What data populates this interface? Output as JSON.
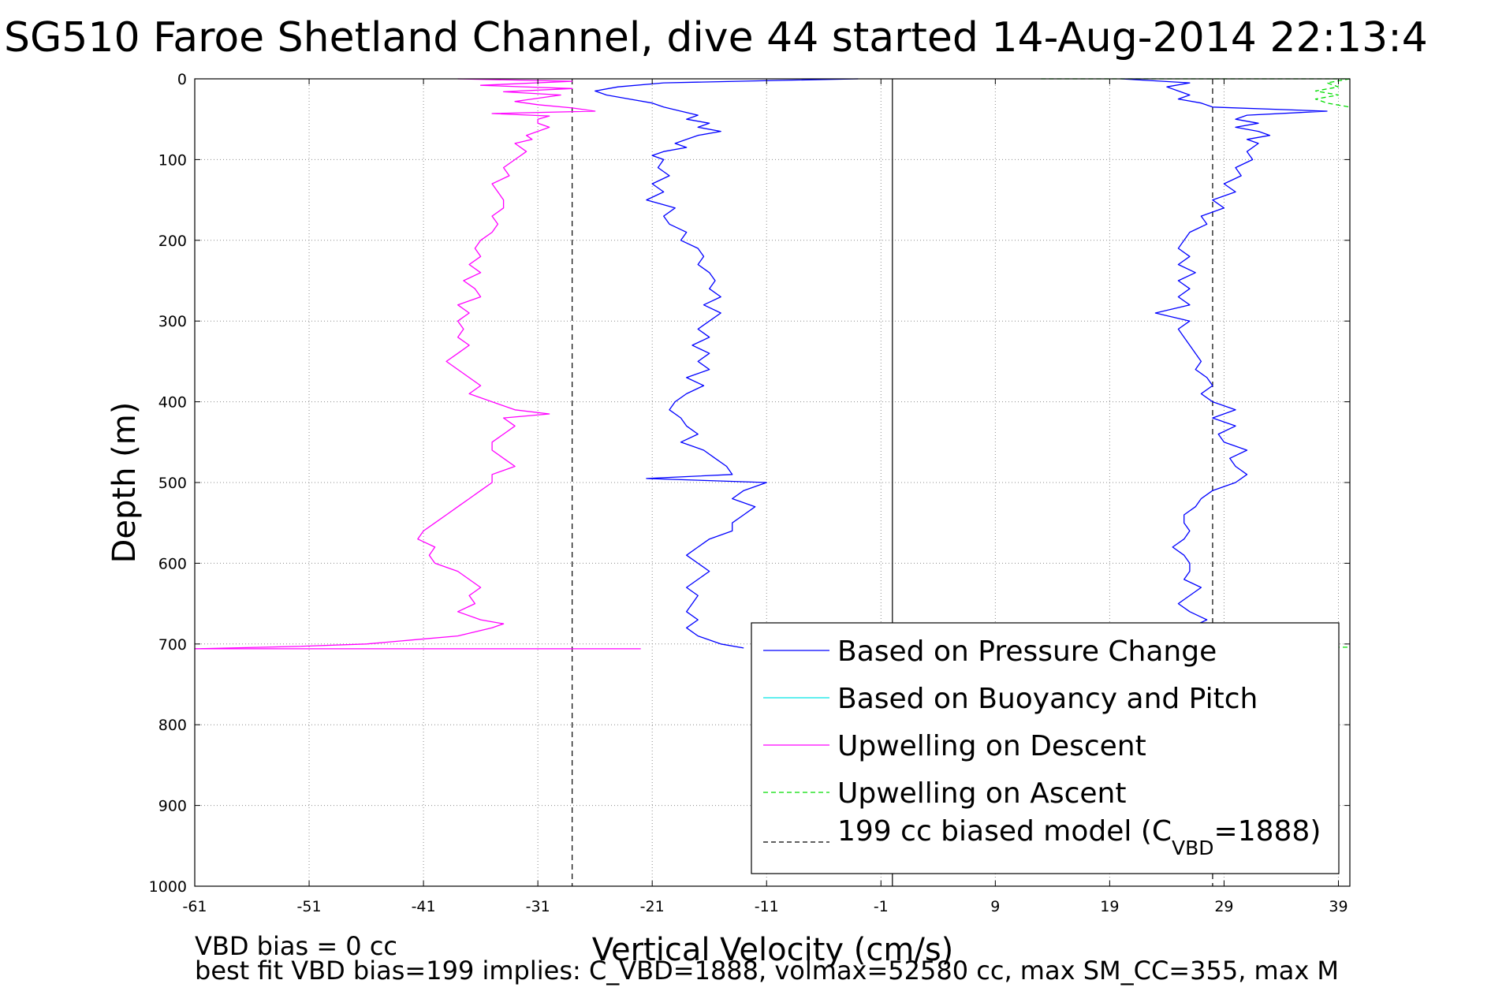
{
  "chart_data": {
    "type": "line",
    "title": "SG510 Faroe Shetland Channel, dive 44 started 14-Aug-2014 22:13:4",
    "xlabel": "Vertical Velocity (cm/s)",
    "ylabel": "Depth (m)",
    "xlim": [
      -61,
      40
    ],
    "ylim": [
      0,
      1000
    ],
    "y_reversed": true,
    "x_ticks": [
      -61,
      -51,
      -41,
      -31,
      -21,
      -11,
      -1,
      9,
      19,
      29,
      39
    ],
    "y_ticks": [
      0,
      100,
      200,
      300,
      400,
      500,
      600,
      700,
      800,
      900,
      1000
    ],
    "grid": true,
    "legend_placement": "bottom-right",
    "legend": {
      "entries": [
        {
          "text": "Based on Pressure Change",
          "color": "#0000ff",
          "style": "solid"
        },
        {
          "text": "Based on Buoyancy and Pitch",
          "color": "#00e5e5",
          "style": "solid"
        },
        {
          "text": "Upwelling on Descent",
          "color": "#ff00ff",
          "style": "solid"
        },
        {
          "text": "Upwelling on Ascent",
          "color": "#00dd00",
          "style": "dashed"
        }
      ],
      "model_entry": {
        "text_main": "199 cc biased model (C",
        "text_sub": "VBD",
        "text_tail": "=1888)",
        "color": "#000000",
        "style": "dashed"
      }
    },
    "series": [
      {
        "name": "Based on Pressure Change",
        "color": "#0000ff",
        "style": "solid",
        "segments": [
          {
            "y": [
              0,
              2,
              5,
              10,
              15,
              20,
              25,
              30,
              35,
              40,
              45,
              50,
              55,
              60,
              65,
              70,
              75,
              80,
              85,
              90,
              95,
              100,
              110,
              120,
              130,
              140,
              150,
              160,
              170,
              180,
              190,
              200,
              210,
              220,
              230,
              240,
              250,
              260,
              270,
              280,
              290,
              300,
              310,
              320,
              330,
              340,
              350,
              360,
              370,
              380,
              390,
              400,
              410,
              420,
              430,
              440,
              450,
              460,
              470,
              480,
              490,
              495,
              500,
              510,
              520,
              530,
              540,
              550,
              560,
              570,
              580,
              590,
              600,
              610,
              620,
              630,
              640,
              650,
              660,
              670,
              680,
              690,
              700,
              705
            ],
            "x": [
              -3,
              -10,
              -20,
              -24,
              -26,
              -25,
              -23,
              -21,
              -20,
              -18.5,
              -17,
              -18,
              -16,
              -17,
              -15,
              -17,
              -18,
              -19,
              -18,
              -20,
              -21,
              -20,
              -20.5,
              -19.5,
              -21,
              -20,
              -21.5,
              -19,
              -20,
              -19.5,
              -18,
              -18.5,
              -17,
              -16.5,
              -17,
              -16,
              -15.5,
              -16,
              -15,
              -16.5,
              -15,
              -16,
              -17,
              -16,
              -17.5,
              -16,
              -17,
              -16,
              -18,
              -16.5,
              -18,
              -19,
              -19.5,
              -18.5,
              -18,
              -17,
              -18.5,
              -16.5,
              -15.5,
              -14.5,
              -14,
              -21.5,
              -11,
              -13,
              -14,
              -12,
              -13,
              -14,
              -14,
              -16,
              -17,
              -18,
              -17,
              -16,
              -17,
              -18,
              -17,
              -17.5,
              -18,
              -17,
              -18,
              -17,
              -15,
              -13
            ]
          },
          {
            "y": [
              0,
              5,
              10,
              15,
              20,
              25,
              30,
              35,
              40,
              45,
              50,
              55,
              60,
              65,
              70,
              75,
              80,
              90,
              100,
              110,
              120,
              130,
              140,
              150,
              160,
              170,
              180,
              190,
              200,
              210,
              220,
              230,
              240,
              250,
              260,
              270,
              280,
              290,
              300,
              310,
              320,
              330,
              340,
              350,
              360,
              370,
              380,
              390,
              400,
              410,
              420,
              430,
              440,
              450,
              460,
              470,
              480,
              490,
              500,
              510,
              520,
              530,
              540,
              550,
              560,
              570,
              580,
              590,
              600,
              610,
              620,
              630,
              640,
              650,
              660,
              670,
              680,
              690,
              700
            ],
            "x": [
              20,
              26,
              24,
              25,
              26,
              25,
              27,
              28,
              38,
              31,
              30,
              32,
              30,
              32,
              33,
              31,
              32,
              31,
              31.5,
              30,
              30.5,
              29,
              30,
              28,
              29,
              27,
              27.5,
              26,
              25.5,
              25,
              26,
              25,
              26.5,
              25,
              26,
              25,
              26,
              23,
              26,
              25,
              25.5,
              26,
              26.5,
              27,
              26.5,
              27.5,
              28,
              27,
              28,
              30,
              28,
              30,
              28.5,
              29,
              31,
              29.5,
              30,
              31,
              30,
              28,
              27,
              26.5,
              25.5,
              25.5,
              26,
              25.5,
              24.5,
              25.5,
              26,
              26,
              25.5,
              27,
              26,
              25,
              26,
              27.5,
              26,
              27,
              26
            ]
          }
        ]
      },
      {
        "name": "Based on Buoyancy and Pitch",
        "color": "#00e5e5",
        "style": "solid",
        "segments": []
      },
      {
        "name": "Upwelling on Descent",
        "color": "#ff00ff",
        "style": "solid",
        "segments": [
          {
            "y": [
              0,
              3,
              8,
              12,
              16,
              20,
              24,
              28,
              32,
              36,
              40,
              43,
              46,
              50,
              55,
              60,
              65,
              70,
              75,
              80,
              90,
              100,
              110,
              120,
              130,
              140,
              150,
              160,
              170,
              180,
              190,
              200,
              210,
              220,
              230,
              240,
              250,
              260,
              270,
              280,
              290,
              300,
              310,
              320,
              330,
              340,
              350,
              360,
              370,
              380,
              390,
              400,
              410,
              415,
              420,
              430,
              440,
              450,
              460,
              470,
              480,
              490,
              500,
              510,
              520,
              530,
              540,
              550,
              560,
              570,
              580,
              590,
              600,
              610,
              620,
              630,
              640,
              650,
              660,
              670,
              675,
              680,
              690,
              695,
              700,
              703,
              706
            ],
            "x": [
              -38,
              -28,
              -36,
              -28,
              -34,
              -29,
              -31,
              -33,
              -31,
              -28,
              -26,
              -35,
              -30,
              -31,
              -31,
              -30,
              -31,
              -32,
              -31.5,
              -33,
              -32,
              -33,
              -34,
              -33.5,
              -35,
              -34.5,
              -34,
              -34,
              -35,
              -34.5,
              -35,
              -36,
              -36.5,
              -36,
              -37,
              -36,
              -37.5,
              -36.5,
              -36,
              -38,
              -37,
              -38,
              -37.5,
              -38,
              -37,
              -38,
              -39,
              -38,
              -37,
              -36,
              -37,
              -35,
              -33,
              -30,
              -34,
              -33,
              -34,
              -35,
              -35,
              -34,
              -33,
              -35,
              -35,
              -36,
              -37,
              -38,
              -39,
              -40,
              -41,
              -41.5,
              -40,
              -40.5,
              -40,
              -38,
              -37,
              -36,
              -37,
              -36.5,
              -38,
              -36,
              -34,
              -35,
              -38,
              -42,
              -46,
              -52,
              -61
            ]
          },
          {
            "y": [
              706,
              706
            ],
            "x": [
              -61,
              -22
            ]
          }
        ]
      },
      {
        "name": "Upwelling on Ascent",
        "color": "#00dd00",
        "style": "dashed",
        "segments": [
          {
            "y": [
              0,
              0
            ],
            "x": [
              13,
              40
            ]
          },
          {
            "y": [
              0,
              5,
              10,
              15,
              20,
              25,
              30,
              35
            ],
            "x": [
              40,
              38,
              39,
              37,
              39,
              37,
              38,
              40
            ]
          },
          {
            "y": [
              704,
              704
            ],
            "x": [
              38,
              40
            ]
          }
        ]
      }
    ],
    "reference_lines": [
      {
        "name": "199 cc biased model",
        "x": -28,
        "color": "#000000",
        "style": "dashed"
      },
      {
        "name": "199 cc biased model",
        "x": 28,
        "color": "#000000",
        "style": "dashed"
      },
      {
        "name": "zero",
        "x": 0,
        "color": "#000000",
        "style": "solid"
      }
    ],
    "annotations": {
      "bias_line": "VBD bias = 0 cc",
      "fit_line": "best fit VBD bias=199 implies: C_VBD=1888, volmax=52580 cc, max SM_CC=355, max M"
    }
  }
}
